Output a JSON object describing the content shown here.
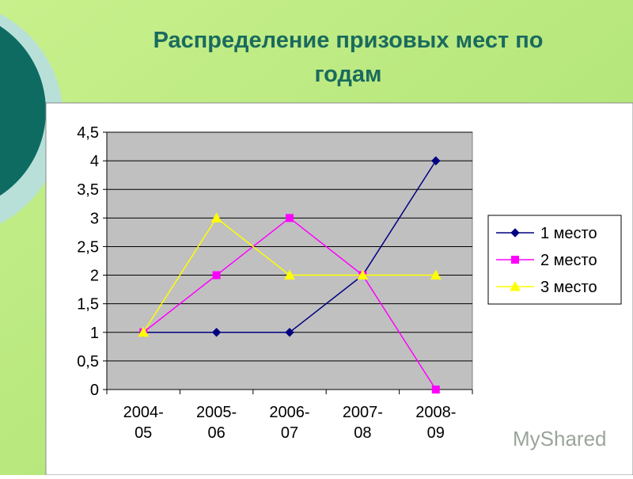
{
  "chart_data": {
    "type": "line",
    "title": "Распределение призовых мест по годам",
    "categories": [
      "2004-05",
      "2005-06",
      "2006-07",
      "2007-08",
      "2008-09"
    ],
    "series": [
      {
        "name": "1 место",
        "color": "#000080",
        "marker": "diamond",
        "values": [
          1,
          1,
          1,
          2,
          4
        ]
      },
      {
        "name": "2 место",
        "color": "#ff00ff",
        "marker": "square",
        "values": [
          1,
          2,
          3,
          2,
          0
        ]
      },
      {
        "name": "3 место",
        "color": "#ffff00",
        "marker": "triangle",
        "values": [
          1,
          3,
          2,
          2,
          2
        ]
      }
    ],
    "ylim": [
      0,
      4.5
    ],
    "yticks": [
      0,
      {
        "value": 0.5,
        "label": "0,5"
      },
      1,
      {
        "value": 1.5,
        "label": "1,5"
      },
      2,
      {
        "value": 2.5,
        "label": "2,5"
      },
      3,
      {
        "value": 3.5,
        "label": "3,5"
      },
      4,
      {
        "value": 4.5,
        "label": "4,5"
      }
    ],
    "grid": true,
    "legend": "right",
    "watermark": "MyShared"
  }
}
